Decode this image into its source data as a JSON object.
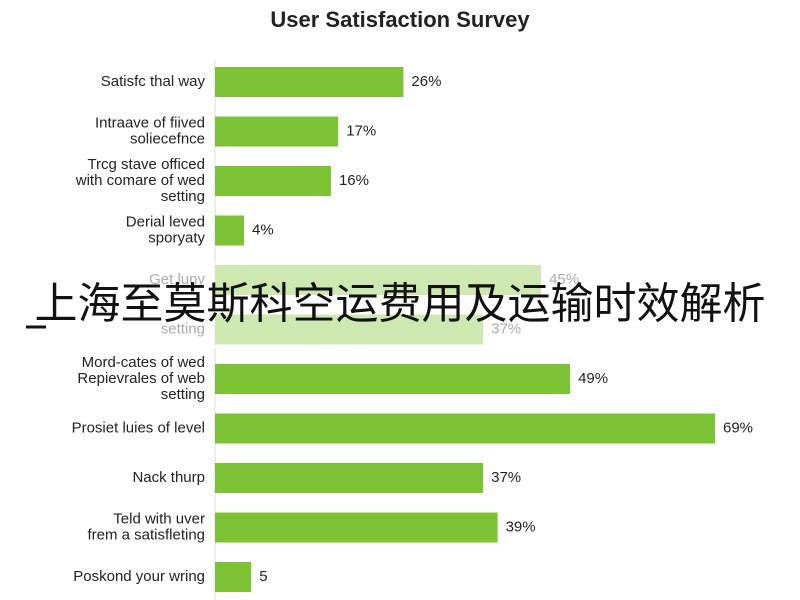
{
  "chart_data": {
    "type": "hbar",
    "title": "User Satisfaction Survey",
    "categories": [
      [
        "Satisfc thal way"
      ],
      [
        "Intraave of fiived",
        "soliecefnce"
      ],
      [
        "Trcg stave officed",
        "with comare of wed",
        "setting"
      ],
      [
        "Derial leved",
        "sporyaty"
      ],
      [
        "Get luny"
      ],
      [
        "setting"
      ],
      [
        "Mord-cates of wed",
        "Repievrales of web",
        "setting"
      ],
      [
        "Prosiet luies of level"
      ],
      [
        "Nack thurp"
      ],
      [
        "Teld with uver",
        "frem a satisfleting"
      ],
      [
        "Poskond your wring"
      ]
    ],
    "values": [
      26,
      17,
      16,
      4,
      45,
      37,
      49,
      69,
      37,
      39,
      5
    ],
    "value_labels": [
      "26%",
      "17%",
      "16%",
      "4%",
      "45%",
      "37%",
      "49%",
      "69%",
      "37%",
      "39%",
      "5"
    ],
    "color": "#7cc234"
  },
  "caption": "上海至莫斯科空运费用及运输时效解析"
}
